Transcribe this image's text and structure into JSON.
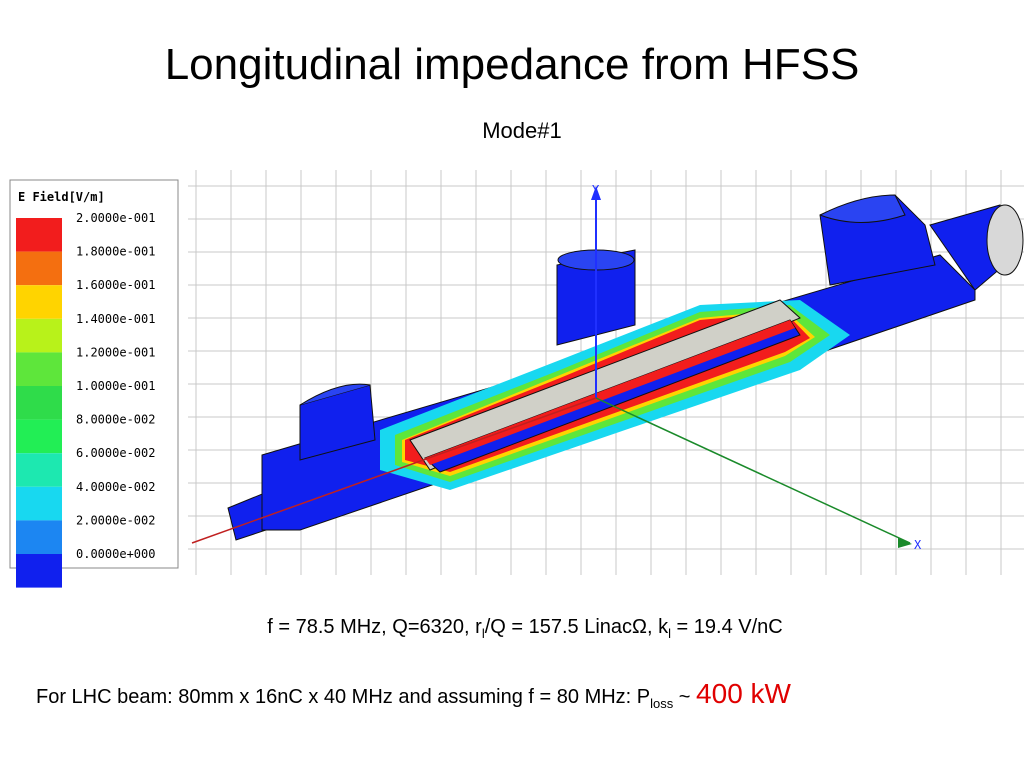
{
  "title": "Longitudinal impedance from HFSS",
  "subtitle": "Mode#1",
  "figure": {
    "legend": {
      "title": "E Field[V/m]",
      "labels": [
        "2.0000e-001",
        "1.8000e-001",
        "1.6000e-001",
        "1.4000e-001",
        "1.2000e-001",
        "1.0000e-001",
        "8.0000e-002",
        "6.0000e-002",
        "4.0000e-002",
        "2.0000e-002",
        "0.0000e+000"
      ],
      "colors": [
        "#f21d1d",
        "#f46f10",
        "#ffd400",
        "#b8f21a",
        "#5ee63b",
        "#2fdc4a",
        "#22ee55",
        "#1de8b0",
        "#18d8f0",
        "#1c86f2",
        "#1020ee"
      ]
    },
    "axis_labels": {
      "y": "Y",
      "x": "X"
    }
  },
  "results": {
    "line1": [
      "f = 78.5 MHz, Q=6320, r",
      "l",
      "/Q = 157.5 LinacΩ, k",
      "l",
      " = 19.4 V/nC"
    ],
    "line2": [
      "For LHC beam: 80mm x 16nC x 40 MHz and assuming f = 80 MHz: P",
      "loss",
      " ~ ",
      "400 kW"
    ]
  }
}
